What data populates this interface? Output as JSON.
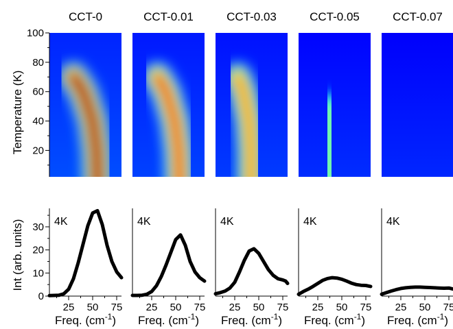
{
  "chart_data": [
    {
      "type": "heatmap",
      "panels": [
        "CCT-0",
        "CCT-0.01",
        "CCT-0.03",
        "CCT-0.05",
        "CCT-0.07"
      ],
      "ylabel": "Temperature (K)",
      "ylim": [
        2,
        100
      ],
      "y_ticks": [
        "20",
        "40",
        "60",
        "80",
        "100"
      ],
      "xlim": [
        5,
        80
      ],
      "colormap": "jet",
      "ridges": [
        {
          "panel": "CCT-0",
          "points": [
            {
              "temperature": 2,
              "freq": 55
            },
            {
              "temperature": 20,
              "freq": 54
            },
            {
              "temperature": 40,
              "freq": 50
            },
            {
              "temperature": 60,
              "freq": 40
            },
            {
              "temperature": 70,
              "freq": 30
            }
          ],
          "peak_intensity": 1.0
        },
        {
          "panel": "CCT-0.01",
          "points": [
            {
              "temperature": 2,
              "freq": 54
            },
            {
              "temperature": 20,
              "freq": 53
            },
            {
              "temperature": 40,
              "freq": 49
            },
            {
              "temperature": 60,
              "freq": 40
            },
            {
              "temperature": 70,
              "freq": 31
            }
          ],
          "peak_intensity": 0.72
        },
        {
          "panel": "CCT-0.03",
          "points": [
            {
              "temperature": 2,
              "freq": 42
            },
            {
              "temperature": 20,
              "freq": 42
            },
            {
              "temperature": 40,
              "freq": 40
            },
            {
              "temperature": 60,
              "freq": 34
            },
            {
              "temperature": 70,
              "freq": 28
            }
          ],
          "peak_intensity": 0.55
        },
        {
          "panel": "CCT-0.05",
          "points": [
            {
              "temperature": 2,
              "freq": 38
            },
            {
              "temperature": 30,
              "freq": 38
            },
            {
              "temperature": 50,
              "freq": 36
            }
          ],
          "peak_intensity": 0.2
        },
        {
          "panel": "CCT-0.07",
          "points": [
            {
              "temperature": 2,
              "freq": 40
            },
            {
              "temperature": 40,
              "freq": 40
            }
          ],
          "peak_intensity": 0.05
        }
      ]
    },
    {
      "type": "line",
      "ylabel": "Int (arb. units)",
      "xlabel_prefix": "Freq. (cm",
      "xlabel_sup": "-1",
      "xlabel_suffix": ")",
      "xlim": [
        5,
        80
      ],
      "ylim": [
        0,
        38
      ],
      "x_ticks": [
        "25",
        "50",
        "75"
      ],
      "y_ticks": [
        "0",
        "10",
        "20",
        "30"
      ],
      "series": [
        {
          "panel": "CCT-0",
          "temperature_label": "4K",
          "x": [
            5,
            10,
            15,
            20,
            25,
            30,
            35,
            40,
            45,
            50,
            55,
            60,
            65,
            70,
            75,
            80
          ],
          "values": [
            0.2,
            0.3,
            0.4,
            1.0,
            3.0,
            7.5,
            14.5,
            22.5,
            30.5,
            36.0,
            37.0,
            31.0,
            22.0,
            15.0,
            10.5,
            8.0
          ]
        },
        {
          "panel": "CCT-0.01",
          "temperature_label": "4K",
          "x": [
            5,
            10,
            15,
            20,
            25,
            30,
            35,
            40,
            45,
            50,
            55,
            60,
            65,
            70,
            75,
            80
          ],
          "values": [
            0.3,
            0.3,
            0.4,
            0.8,
            2.0,
            4.5,
            8.5,
            13.5,
            19.0,
            24.5,
            26.5,
            22.0,
            15.0,
            10.5,
            8.0,
            6.5
          ]
        },
        {
          "panel": "CCT-0.03",
          "temperature_label": "4K",
          "x": [
            5,
            10,
            15,
            20,
            25,
            30,
            35,
            40,
            45,
            50,
            55,
            60,
            65,
            70,
            75,
            78,
            80
          ],
          "values": [
            1.0,
            1.5,
            2.2,
            3.5,
            6.0,
            10.5,
            15.5,
            19.5,
            20.5,
            18.5,
            15.0,
            11.5,
            9.0,
            7.5,
            7.0,
            6.5,
            5.5
          ]
        },
        {
          "panel": "CCT-0.05",
          "temperature_label": "4K",
          "x": [
            5,
            10,
            15,
            20,
            25,
            30,
            35,
            40,
            45,
            50,
            55,
            60,
            65,
            70,
            75,
            80
          ],
          "values": [
            0.8,
            2.0,
            3.0,
            4.2,
            5.5,
            6.8,
            7.6,
            8.0,
            7.8,
            7.3,
            6.5,
            5.6,
            5.0,
            4.7,
            4.6,
            4.2
          ]
        },
        {
          "panel": "CCT-0.07",
          "temperature_label": "4K",
          "x": [
            5,
            10,
            15,
            20,
            25,
            30,
            35,
            40,
            45,
            50,
            55,
            60,
            65,
            70,
            75,
            80
          ],
          "values": [
            0.8,
            1.5,
            2.2,
            2.8,
            3.3,
            3.6,
            3.8,
            3.9,
            3.9,
            3.8,
            3.7,
            3.6,
            3.5,
            3.4,
            3.5,
            3.0
          ]
        }
      ]
    }
  ]
}
